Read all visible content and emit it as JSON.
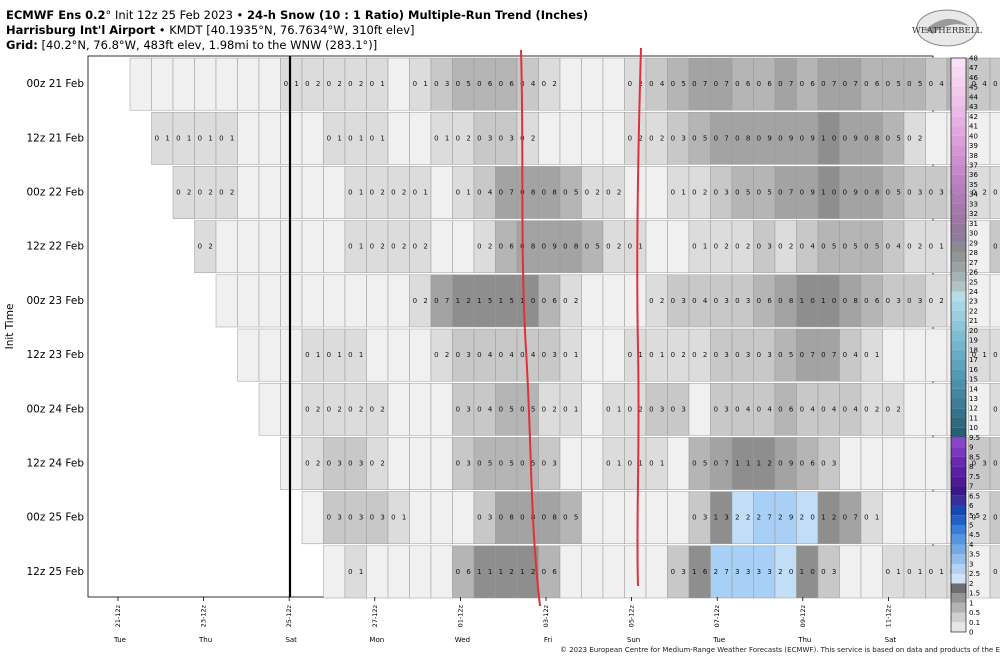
{
  "header": {
    "line1_model": "ECMWF Ens 0.2",
    "line1_init": "Init 12z 25 Feb 2023",
    "line1_product": "24-h Snow (10 : 1 Ratio) Multiple-Run Trend (Inches)",
    "line2_station": "Harrisburg Int'l Airport",
    "line2_detail": "KMDT [40.1935°N, 76.7634°W, 310ft elev]",
    "line3_label": "Grid:",
    "line3_detail": "[40.2°N, 76.8°W, 483ft elev, 1.98mi to the WNW (283.1°)]"
  },
  "logo_text": "WEATHERBELL",
  "footer": "© 2023 European Centre for Medium-Range Weather Forecasts (ECMWF). This service is based on data and products of the ECMWF.",
  "chart_data": {
    "type": "heatmap",
    "ylabel": "Init Time",
    "init_times": [
      "00z 21 Feb",
      "12z 21 Feb",
      "00z 22 Feb",
      "12z 22 Feb",
      "00z 23 Feb",
      "12z 23 Feb",
      "00z 24 Feb",
      "12z 24 Feb",
      "00z 25 Feb",
      "12z 25 Feb"
    ],
    "x_ticks": [
      "21-12z",
      "23-12z",
      "25-12z",
      "27-12z",
      "01-12z",
      "03-12z",
      "05-12z",
      "07-12z",
      "09-12z",
      "11-12z"
    ],
    "day_labels": [
      "Tue",
      "Thu",
      "Sat",
      "Mon",
      "Wed",
      "Fri",
      "Sun",
      "Tue",
      "Thu",
      "Sat"
    ],
    "rows": [
      {
        "start": 0,
        "values": [
          "",
          "",
          "",
          "",
          "",
          "",
          "",
          "",
          "",
          "",
          "",
          "",
          "",
          "",
          "0",
          "1",
          "0",
          "2",
          "0",
          "2",
          "0",
          "2",
          "0",
          "1",
          "",
          "",
          "0",
          "1",
          "0",
          "3",
          "0",
          "5",
          "0",
          "6",
          "0",
          "6",
          "0",
          "4",
          "0",
          "2",
          "",
          "",
          "",
          "",
          "",
          "",
          "0",
          "2",
          "0",
          "4",
          "0",
          "5",
          "0",
          "7",
          "0",
          "7",
          "0",
          "6",
          "0",
          "6",
          "0",
          "7",
          "0",
          "6",
          "0",
          "7",
          "0",
          "7",
          "0",
          "6",
          "0",
          "5",
          "0",
          "5",
          "0",
          "4",
          "0",
          "5",
          "0",
          "4",
          "0",
          "4",
          "0",
          "3",
          "0",
          "3",
          "0",
          "3",
          "0",
          "4"
        ]
      },
      {
        "start": 2,
        "values": [
          "0",
          "1",
          "0",
          "1",
          "0",
          "1",
          "0",
          "1",
          "",
          "",
          "",
          "",
          "",
          "",
          "",
          "",
          "0",
          "1",
          "0",
          "1",
          "0",
          "1",
          "",
          "",
          "",
          "",
          "0",
          "1",
          "0",
          "2",
          "0",
          "3",
          "0",
          "3",
          "0",
          "2",
          "",
          "",
          "",
          "",
          "",
          "",
          "",
          "",
          "0",
          "2",
          "0",
          "2",
          "0",
          "3",
          "0",
          "5",
          "0",
          "7",
          "0",
          "8",
          "0",
          "9",
          "0",
          "9",
          "0",
          "9",
          "1",
          "0",
          "0",
          "9",
          "0",
          "8",
          "0",
          "5",
          "0",
          "2",
          "",
          "",
          "",
          "",
          "",
          "",
          "",
          "",
          "0",
          "1",
          "0",
          "3",
          "0",
          "3",
          "0",
          "5",
          "0",
          "5",
          "0",
          "6",
          "0",
          "6"
        ]
      },
      {
        "start": 4,
        "values": [
          "0",
          "2",
          "0",
          "2",
          "0",
          "2",
          "",
          "",
          "",
          "",
          "",
          "",
          "",
          "",
          "",
          "",
          "0",
          "1",
          "0",
          "2",
          "0",
          "2",
          "0",
          "1",
          "",
          "",
          "0",
          "1",
          "0",
          "4",
          "0",
          "7",
          "0",
          "8",
          "0",
          "8",
          "0",
          "5",
          "0",
          "2",
          "0",
          "2",
          "",
          "",
          "",
          "",
          "0",
          "1",
          "0",
          "2",
          "0",
          "3",
          "0",
          "5",
          "0",
          "5",
          "0",
          "7",
          "0",
          "9",
          "1",
          "0",
          "0",
          "9",
          "0",
          "8",
          "0",
          "5",
          "0",
          "3",
          "0",
          "3",
          "0",
          "2",
          "0",
          "2",
          "0",
          "1",
          "",
          "",
          "",
          "",
          "",
          "",
          "",
          "",
          "0",
          "1",
          "0",
          "2",
          "0",
          "2"
        ]
      },
      {
        "start": 6,
        "values": [
          "0",
          "2",
          "",
          "",
          "",
          "",
          "",
          "",
          "",
          "",
          "",
          "",
          "",
          "",
          "0",
          "1",
          "0",
          "2",
          "0",
          "2",
          "0",
          "2",
          "",
          "",
          "",
          "",
          "0",
          "2",
          "0",
          "6",
          "0",
          "8",
          "0",
          "9",
          "0",
          "8",
          "0",
          "5",
          "0",
          "2",
          "0",
          "1",
          "",
          "",
          "",
          "",
          "0",
          "1",
          "0",
          "2",
          "0",
          "2",
          "0",
          "3",
          "0",
          "2",
          "0",
          "4",
          "0",
          "5",
          "0",
          "5",
          "0",
          "5",
          "0",
          "4",
          "0",
          "2",
          "0",
          "1",
          "",
          "",
          "",
          "",
          "0",
          "3",
          "0",
          "4",
          "0",
          "4",
          "0",
          "4",
          "0",
          "3",
          "0",
          "2",
          "0",
          "2",
          "0",
          "1"
        ]
      },
      {
        "start": 8,
        "values": [
          "",
          "",
          "",
          "",
          "",
          "",
          "",
          "",
          "",
          "",
          "",
          "",
          "",
          "",
          "",
          "",
          "",
          "",
          "0",
          "2",
          "0",
          "7",
          "1",
          "2",
          "1",
          "5",
          "1",
          "5",
          "1",
          "0",
          "0",
          "6",
          "0",
          "2",
          "",
          "",
          "",
          "",
          "",
          "",
          "0",
          "2",
          "0",
          "3",
          "0",
          "4",
          "0",
          "3",
          "0",
          "3",
          "0",
          "6",
          "0",
          "8",
          "1",
          "0",
          "1",
          "0",
          "0",
          "8",
          "0",
          "6",
          "0",
          "3",
          "0",
          "3",
          "0",
          "2",
          "",
          "",
          "",
          "",
          "",
          "",
          "",
          "",
          "0",
          "1",
          "0",
          "3",
          "0",
          "4",
          "0",
          "5",
          "0",
          "4",
          "0",
          "3",
          "0",
          "2",
          "0",
          "1"
        ]
      },
      {
        "start": 10,
        "values": [
          "",
          "",
          "",
          "",
          "",
          "",
          "0",
          "1",
          "0",
          "1",
          "0",
          "1",
          "",
          "",
          "",
          "",
          "",
          "",
          "0",
          "2",
          "0",
          "3",
          "0",
          "4",
          "0",
          "4",
          "0",
          "4",
          "0",
          "3",
          "0",
          "1",
          "",
          "",
          "",
          "",
          "0",
          "1",
          "0",
          "1",
          "0",
          "2",
          "0",
          "2",
          "0",
          "3",
          "0",
          "3",
          "0",
          "3",
          "0",
          "5",
          "0",
          "7",
          "0",
          "7",
          "0",
          "4",
          "0",
          "1",
          "",
          "",
          "",
          "",
          "",
          "",
          "",
          "",
          "0",
          "1",
          "0",
          "1",
          "0",
          "3",
          "0",
          "3",
          "0",
          "5",
          "0",
          "4",
          "0",
          "1",
          "0",
          "1",
          "0",
          "2",
          "0",
          "2",
          "0",
          "2",
          "0",
          "1"
        ]
      },
      {
        "start": 12,
        "values": [
          "",
          "",
          "",
          "",
          "0",
          "2",
          "0",
          "2",
          "0",
          "2",
          "0",
          "2",
          "",
          "",
          "",
          "",
          "",
          "",
          "0",
          "3",
          "0",
          "4",
          "0",
          "5",
          "0",
          "5",
          "0",
          "2",
          "0",
          "1",
          "",
          "",
          "0",
          "1",
          "0",
          "2",
          "0",
          "3",
          "0",
          "3",
          "",
          "",
          "0",
          "3",
          "0",
          "4",
          "0",
          "4",
          "0",
          "6",
          "0",
          "4",
          "0",
          "4",
          "0",
          "4",
          "0",
          "2",
          "0",
          "2",
          "",
          "",
          "",
          "",
          "",
          "",
          "",
          "",
          "0",
          "2",
          "0",
          "2",
          "0",
          "2",
          "0",
          "2",
          "",
          "",
          "0",
          "2",
          "0",
          "4",
          "0",
          "4",
          "0",
          "3",
          "0",
          "3",
          "0",
          "4"
        ]
      },
      {
        "start": 14,
        "values": [
          "",
          "",
          "0",
          "2",
          "0",
          "3",
          "0",
          "3",
          "0",
          "2",
          "",
          "",
          "",
          "",
          "",
          "",
          "0",
          "3",
          "0",
          "5",
          "0",
          "5",
          "0",
          "5",
          "0",
          "3",
          "",
          "",
          "",
          "",
          "0",
          "1",
          "0",
          "1",
          "0",
          "1",
          "",
          "",
          "0",
          "5",
          "0",
          "7",
          "1",
          "1",
          "1",
          "2",
          "0",
          "9",
          "0",
          "6",
          "0",
          "3",
          "",
          "",
          "",
          "",
          "",
          "",
          "",
          "",
          "",
          "",
          "0",
          "2",
          "0",
          "3",
          "0",
          "4",
          "0",
          "8",
          "0",
          "8",
          "0",
          "7",
          "0",
          "4",
          "0",
          "6",
          "0",
          "5",
          "0",
          "3",
          "0",
          "3",
          "0",
          "2"
        ]
      },
      {
        "start": 16,
        "values": [
          "",
          "",
          "0",
          "3",
          "0",
          "3",
          "0",
          "3",
          "0",
          "1",
          "",
          "",
          "",
          "",
          "",
          "",
          "0",
          "3",
          "0",
          "8",
          "0",
          "8",
          "0",
          "8",
          "0",
          "5",
          "",
          "",
          "",
          "",
          "",
          "",
          "",
          "",
          "",
          "",
          "0",
          "3",
          "1",
          "3",
          "2",
          "2",
          "2",
          "7",
          "2",
          "9",
          "2",
          "0",
          "1",
          "2",
          "0",
          "7",
          "0",
          "1",
          "",
          "",
          "",
          "",
          "",
          "",
          "",
          "",
          "0",
          "2",
          "0",
          "3",
          "0",
          "4",
          "0",
          "4",
          "0",
          "2",
          "0",
          "1",
          "0",
          "3",
          "0",
          "4",
          "0",
          "5",
          "0",
          "7",
          "0",
          "6",
          "0",
          "6",
          "0",
          "6",
          "0",
          "6",
          "0",
          "4"
        ]
      },
      {
        "start": 18,
        "values": [
          "",
          "",
          "0",
          "1",
          "",
          "",
          "",
          "",
          "",
          "",
          "",
          "",
          "0",
          "6",
          "1",
          "1",
          "1",
          "2",
          "1",
          "2",
          "0",
          "6",
          "",
          "",
          "",
          "",
          "",
          "",
          "",
          "",
          "",
          "",
          "0",
          "3",
          "1",
          "6",
          "2",
          "7",
          "3",
          "3",
          "3",
          "3",
          "2",
          "0",
          "1",
          "0",
          "0",
          "3",
          "",
          "",
          "",
          "",
          "0",
          "1",
          "0",
          "1",
          "0",
          "1",
          "0",
          "1",
          "",
          "",
          "0",
          "1",
          "0",
          "2",
          "0",
          "3",
          "0",
          "3",
          "0",
          "3",
          "0",
          "5",
          "0",
          "5",
          "0",
          "6",
          "0",
          "6",
          "0",
          "4",
          "0",
          "4",
          "0",
          "4",
          "0",
          "4",
          "0",
          "4",
          "0",
          "6"
        ]
      }
    ],
    "colorbar_ticks": [
      "0",
      "0.1",
      "0.5",
      "1",
      "1.5",
      "2",
      "2.5",
      "3",
      "3.5",
      "4",
      "4.5",
      "5",
      "5.5",
      "6",
      "6.5",
      "7",
      "7.5",
      "8",
      "8.5",
      "9",
      "9.5",
      "10",
      "11",
      "12",
      "13",
      "14",
      "15",
      "16",
      "17",
      "18",
      "19",
      "20",
      "21",
      "22",
      "23",
      "24",
      "25",
      "26",
      "27",
      "28",
      "29",
      "30",
      "31",
      "32",
      "33",
      "34",
      "35",
      "36",
      "37",
      "38",
      "39",
      "40",
      "41",
      "42",
      "43",
      "44",
      "45",
      "46",
      "47",
      "48"
    ],
    "colorbar_colors": [
      "#ffffff",
      "#e6e6e6",
      "#cfcfcf",
      "#b3b3b3",
      "#969696",
      "#6e6e6e",
      "#cfe3f7",
      "#b3d1f2",
      "#93bdec",
      "#75a8e6",
      "#5893e0",
      "#3b7ed8",
      "#2060c8",
      "#1848b0",
      "#3a2f9a",
      "#3a1888",
      "#4e1a96",
      "#5a20a3",
      "#6a2ab0",
      "#7a36bc",
      "#8a44c6",
      "#2b5d75",
      "#306880",
      "#36728b",
      "#3c7c96",
      "#4486a0",
      "#4c90aa",
      "#559ab3",
      "#5ea3bc",
      "#69acc4",
      "#75b5cb",
      "#81bdd2",
      "#8ec5d8",
      "#9bcddd",
      "#a9d5e2",
      "#b7dde7",
      "#b0c3c7",
      "#a6b1b4",
      "#9ca2a4",
      "#939597",
      "#8b8b8c",
      "#8d7d95",
      "#95799c",
      "#9d78a4",
      "#a579ac",
      "#ad7ab4",
      "#b57dbb",
      "#bd82c2",
      "#c588c8",
      "#cd8fce",
      "#d497d4",
      "#db9fd9",
      "#e1a8de",
      "#e6b1e2",
      "#ebb9e6",
      "#efc2e9",
      "#f2caec",
      "#f5d2ef",
      "#f7d9f2",
      "#f9e0f4"
    ]
  }
}
